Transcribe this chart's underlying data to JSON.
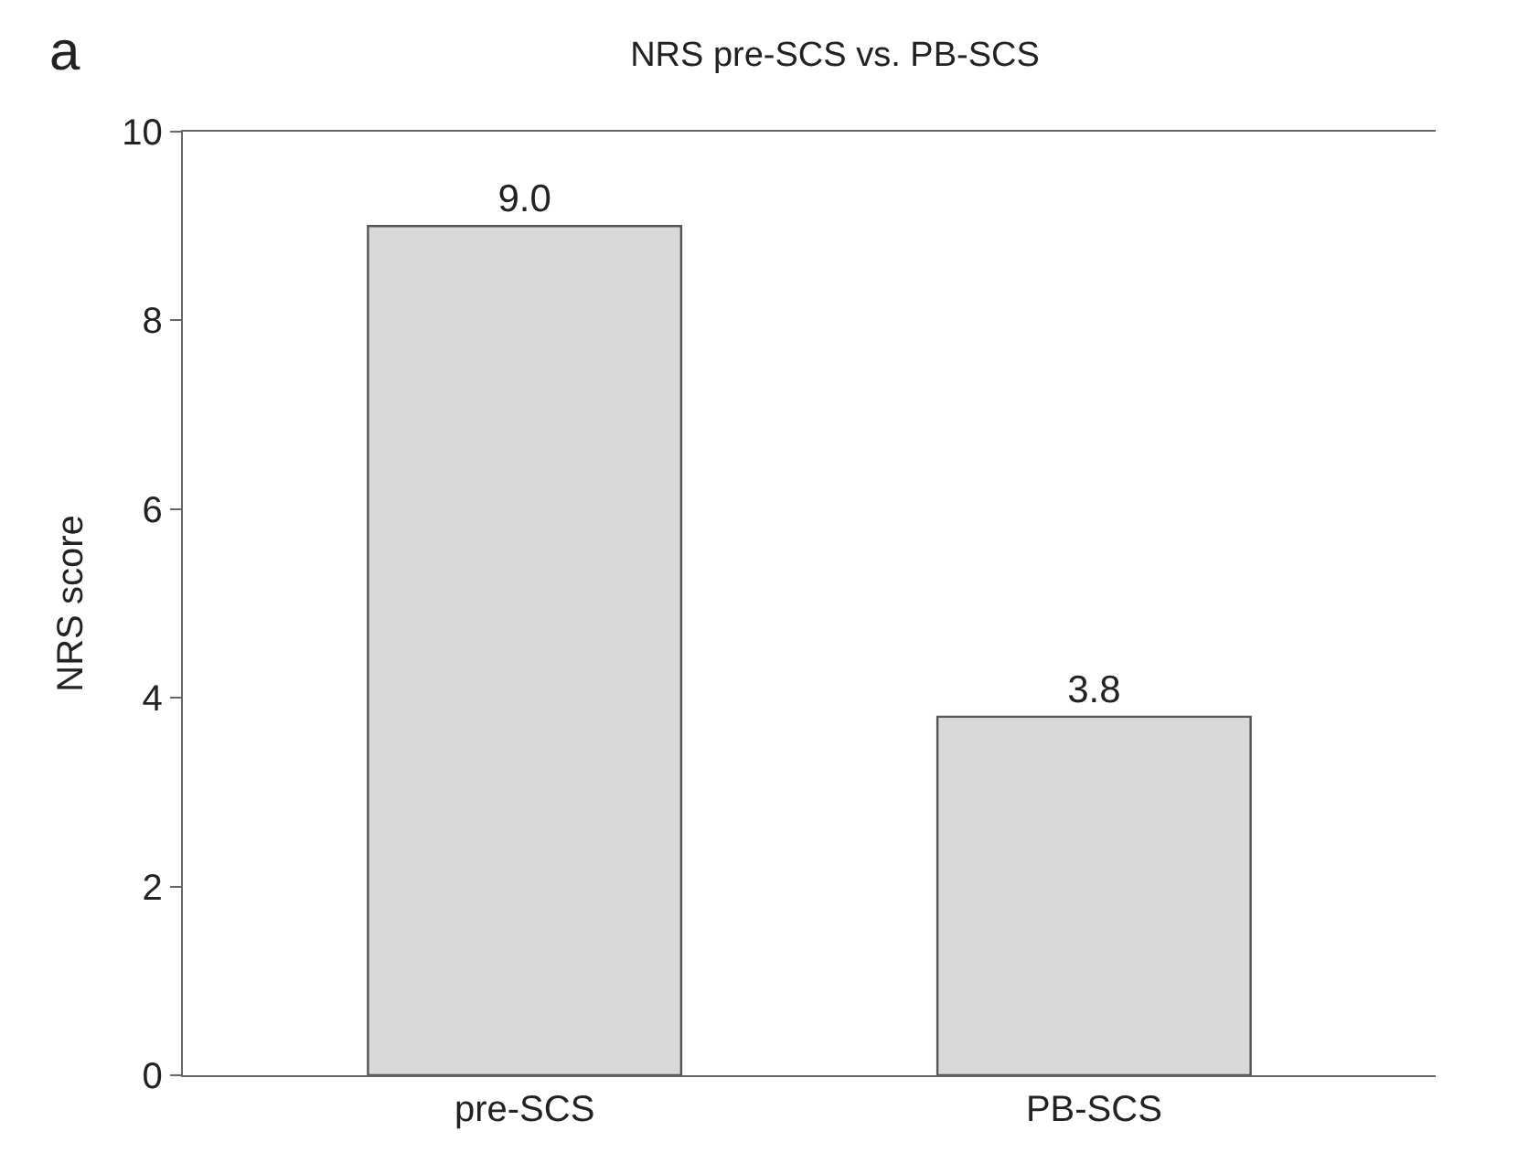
{
  "chart_data": {
    "type": "bar",
    "title": "NRS pre-SCS vs. PB-SCS",
    "ylabel": "NRS score",
    "categories": [
      "pre-SCS",
      "PB-SCS"
    ],
    "values": [
      9.0,
      3.8
    ],
    "value_labels": [
      "9.0",
      "3.8"
    ],
    "color": "#d9d9d9",
    "ylim": [
      0,
      10
    ],
    "yticks": [
      0,
      2,
      4,
      6,
      8,
      10
    ],
    "annotations": [
      "a"
    ]
  }
}
